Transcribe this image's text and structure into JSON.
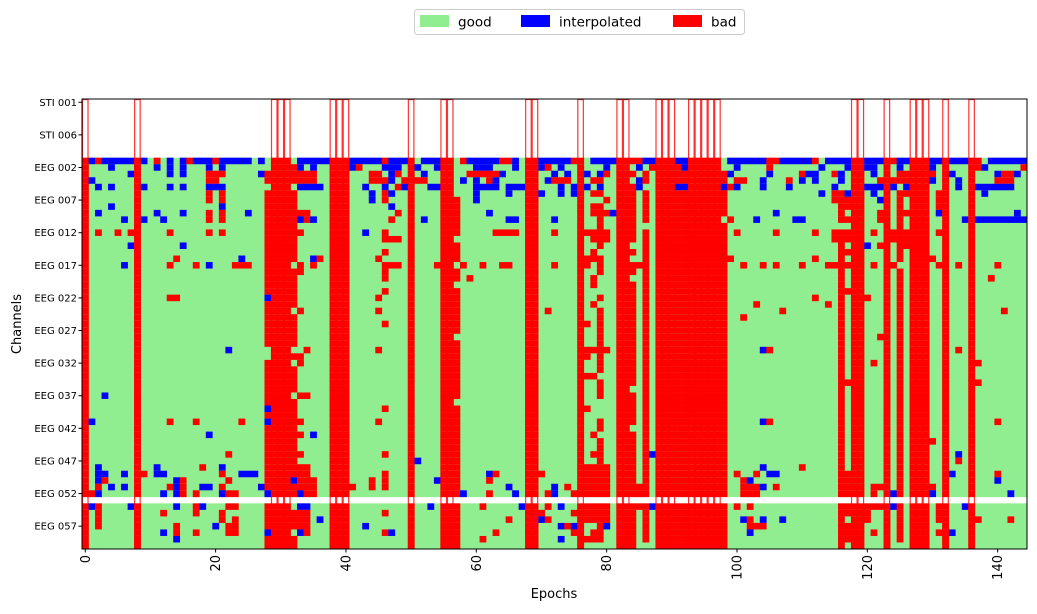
{
  "chart_data": {
    "type": "heatmap",
    "title": "",
    "xlabel": "Epochs",
    "ylabel": "Channels",
    "n_epochs": 145,
    "xlim": [
      -0.5,
      144.5
    ],
    "xticks": [
      0,
      20,
      40,
      60,
      80,
      100,
      120,
      140
    ],
    "yticklabels": [
      "STI 001",
      "STI 006",
      "EEG 002",
      "EEG 007",
      "EEG 012",
      "EEG 017",
      "EEG 022",
      "EEG 027",
      "EEG 032",
      "EEG 037",
      "EEG 042",
      "EEG 047",
      "EEG 052",
      "EEG 057"
    ],
    "ytick_step": 5,
    "stim_rows": 9,
    "legend": {
      "placement": "top-center",
      "entries": [
        {
          "label": "good",
          "color": "#90ee90"
        },
        {
          "label": "interpolated",
          "color": "#0000ff"
        },
        {
          "label": "bad",
          "color": "#ff0000"
        }
      ]
    },
    "bad_epochs": [
      0,
      8,
      29,
      30,
      31,
      38,
      39,
      40,
      50,
      55,
      56,
      68,
      69,
      76,
      82,
      83,
      88,
      89,
      90,
      93,
      94,
      95,
      96,
      97,
      118,
      119,
      123,
      127,
      128,
      129,
      132,
      136
    ],
    "eeg_rows": [
      "i:1,3-5,6-7,9,13,15,17-19,21-25,27,33-36,37,41-45,47-50,52-54,59-63,66,70-74,78-81,86-87,91-92,99-104,107-111,114-117,120-122,125-126,130-131,133-135,139-144|b:2,11,16,20,46,58,64-65,75,84-85,105-106,112,124,137",
      "i:4,11,13,15,19,21,33,35,41,46-48,51,54,60-62,66,70,73,80,85,92,100,113,117,120-121,125,130,138|b:32,42,71,87,91,105,137,144",
      "i:7,13,15,27,34,40,47,52,62,64,72,74,77,79,99,105,111-112,116,121,126,133,140,143|b:19-21,28,32-35,44-45,48,59-63,80,84,86,91-92,98,110,115,125-126,130,141-142",
      "i:1,33,35,47,58,60,63,71,73,85,100,104,110,112,116,130,134,136|b:19-20,28,32-35,44-46,49-52,62,72-74,78-79,86,91-92,98,100-101,108,122,124-126,140-142",
      "i:2,4,9,13,15,19-21,33-36,43,46,48-49,53-54,60-63,65-67,73,75,77,79,85,91-92,98-100,104,108,115,120-122,124,126,134,137-142|b:31,48,84,99",
      "i:44,47,50,56,60,65,70,73,75,96,113,117,121,138|b:19,21,28,32,46,78-79,84,86,91-92,98,115-116,125-126,131",
      "i:44,50,60,122|b:19,21,28,32,46,57,80,84,86,91-92,98,115-117,125,131",
      "i:4,21,47,131|b:28,32,57,78-79,84,86,91-92,98,116-117,125,131",
      "i:2,11,15,21,25,31,40,62,81,84,106,119,122,131,143|b:19,21,28,32-34,48,57,78-80,84,86,91-92,98,116,122,125-126",
      "i:6,9,12,19,29,33-35,52,65,66,69,72,79,82,84,86,89,93,103,109-110,119,123,135-144|b:19,21,28,32,34,47,57,79,84,86,91-92,99,116-117,122,125,128",
      "b:28,32,57,79,84,91-92,98,125",
      "i:43,116|b:2,5,7,13,19,21,28,32,33,46,57,63-66,72,77-80,84,86,91-92,98,100,106,112,115-117,121,124-126,131",
      "b:28,32,46-48,78-80,84,86,91-92,98,115-117,124-126,136",
      "i:7,15,120|b:28,32,57,79,86,91-92,98,116,122,125-126",
      "b:28,32,46,57,78,84,86,91-92,98,116-117,125",
      "i:24,35|b:14,28,32,36,45,57,77-79,86,91-92,98-99,112,116,125,130",
      "i:0,6,19|b:13,17,23-25,28,33,35,46-48,54,58,61,64-65,72,77,79,84-86,91-92,98,101,104,106,110,114-117,121,124,128,131,134,140",
      "b:28,32-33,46,57,79,84,86,91-92,98,116,125",
      "b:28,32,46,57,59,78,86,91-92,98,116,125,139",
      "b:28,32,78,84,86,91-92,98,116,125",
      "b:28,32,46,57,84,86,91-92,98,116-117,125",
      "i:8,28,79|b:13-14,32,45,57,79,84,86,91-92,98,112,116,120,125",
      "b:28,32,57,78,84,86,91-92,98,103,114,116,125",
      "b:28,33,38,45,57,71,79,84,86,91-92,98,107,116,119,125,141",
      "b:28,32,57,79,84,86,91-92,98,101,116,125,136",
      "b:28,32,46,57,77,79,84,86,91-92,98,116,125",
      "b:28,32,57,79,84,86,91-92,98,116,125",
      "b:28,32,79,84,86,91-92,98,116,122,125",
      "b:28,32,57,79,84,86,91-92,98,116,125",
      "i:22,104|b:34,45,57,77-80,84,86,91-92,98,105,116,119,125,128,134",
      "i:29|b:32-33,57,77,79,84,86,91-92,98,116,125",
      "b:28,33,57,79,84,86,91-92,98,116,121,125,137",
      "b:28,32,57,79,84,86,91-92,98,116,125",
      "i:55|b:28,32,57,77-78,84,86,91-92,98,116,125",
      "i:31|b:28,32,57,79,84,86,91-92,98,116-117,125,137",
      "b:28,32,57,79,86,91-92,98,116,125",
      "i:3|b:28,33-34,57,79,84,86,91-92,98,116,125",
      "b:28,32,84,86,91-92,98,116,125",
      "i:28,31|b:32,46,57,77,84,86,91-92,98,116,125",
      "b:28,32,57,84,86,91-92,98,116,125",
      "i:1,28,93,104|b:13,17,24,32-33,45,57,79,84,86,91-92,98,105,116,119,125,140",
      "b:28,32,57,79,86,91-92,98,116,125",
      "i:19,35|b:28,32-33,57,78,84,86,91-92,98,116,125",
      "b:28,32,57,79,84,86,91-92,98,116,125,130",
      "b:28,32,57,79,84,86,91-92,98,116,125",
      "i:31,87,134|b:22,28,32-33,46,57,78-79,84,86,91-92,98,116,125",
      "i:51,68,98|b:28,32,57,79,84,86,91-92,98,116,125,134",
      "i:2,11,21,31,50,90,104|b:18,28,32-34,57,77-80,84,86,91-92,98,110,116,125",
      "i:2-3,6,11-12,24-26,33,39,62,105-106,133|b:9,21,28,32-34,46,57,63,70,77-80,84,86,91-92,98,100,103,116-117,125,128,140",
      "i:2,14,32,54,93,102,140|b:3,15,22,28,33-35,44,46,57,62,77-80,84,86,91-92,98,101,116-117,125",
      "i:4,6,14,18-19,27,33,44,65,72,80,84,104|b:2,13,15,21,28,32-35,41,44,46,57,74,77-80,84-86,91-92,98,101-103,106,116-117,121-122,125,130",
      "i:0,2,12,14,21,28,33,58,66,72,124,130,142|b:1,15,17,22-23,32,34-35,57,62,68,71,75,77-80,84-86,91-92,98,101-103,116-117,121,125",
      null,
      "i:1,7,14,18,23,33-34,53,67,73,87,124,135|b:2,17,22-23,28,57,61,71,77-80,84-86,91-92,98,100,102,116-117,120-122,125,131",
      "b:2,12,17,21,28,32-34,46,57,70,75,77-80,84,86,91-92,98,116-117,120,125,131",
      "i:36,68,70,88,101,104,107|b:2,21,23,28,32-34,57,65,71,77-80,84,86,91-92,98,102,116,120,125,131,137,142",
      "i:20,43,56,73,75,80|b:2,14,22-23,28,32-34,57,74,79,84,86,91-92,98,102-104,116-117,125",
      "i:12,28,31,33,47,56,102,125,133|b:14,17,22-23,34,46,57,63,75,78-79,84,86,91-92,98,116-117,121,125,131",
      "i:14,31,73,76,136|b:28,32,57,61,77-79,84,86,91-92,98,116-117,125",
      "b:28,32,57,84,91-92,98,116"
    ]
  }
}
